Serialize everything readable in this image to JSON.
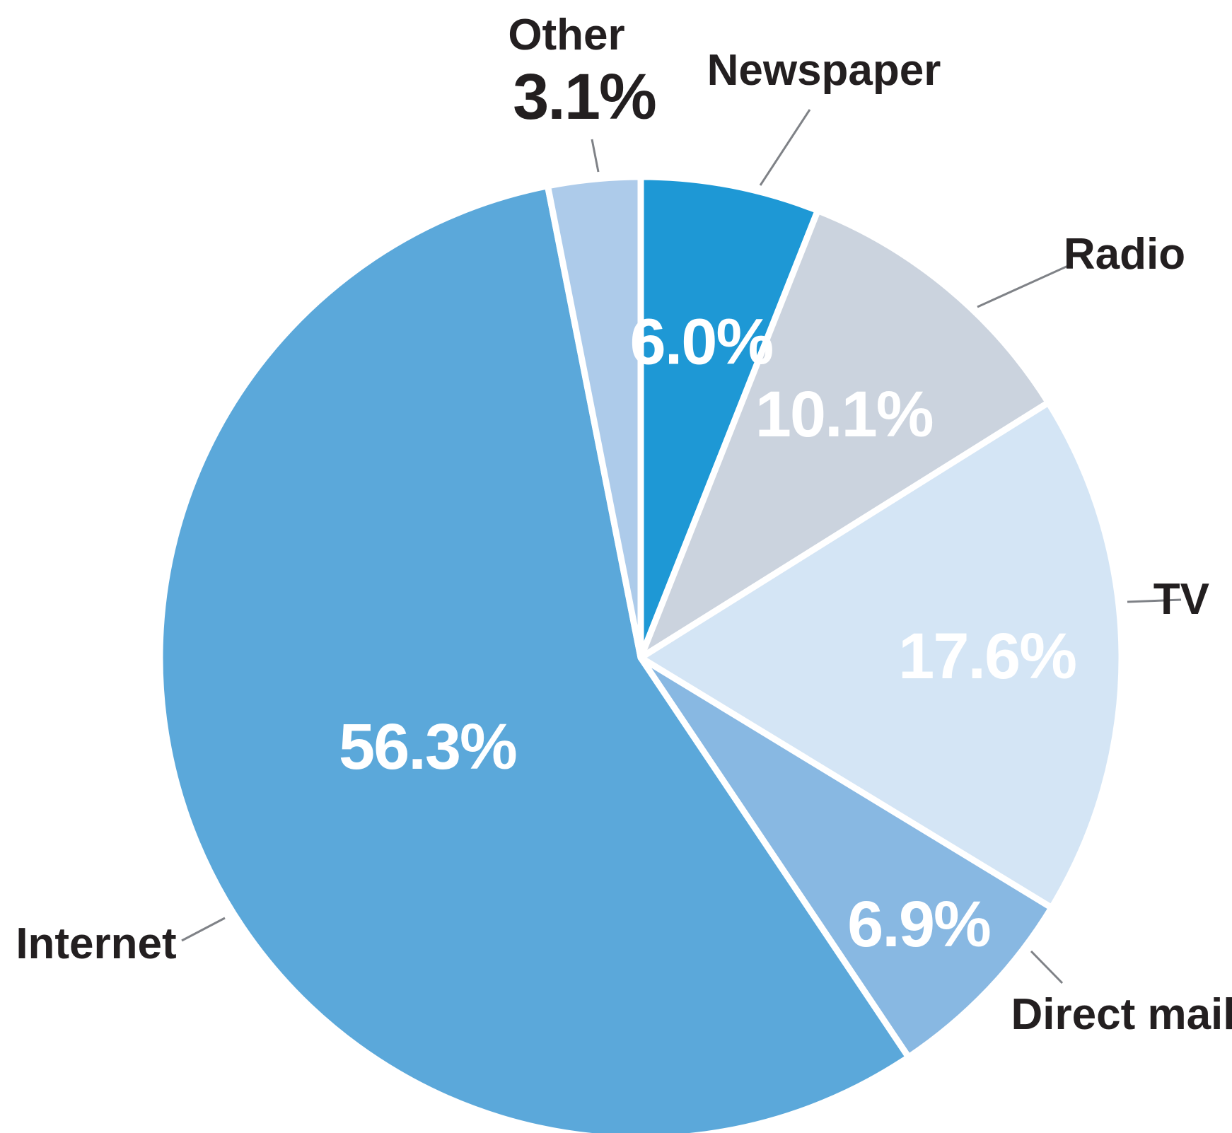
{
  "chart_data": {
    "type": "pie",
    "title": "",
    "start": "12 o'clock",
    "direction": "clockwise",
    "slices": [
      {
        "label": "Newspaper",
        "value": 6.0,
        "value_label": "6.0%",
        "color": "#1e98d5",
        "text_color": "#ffffff"
      },
      {
        "label": "Radio",
        "value": 10.1,
        "value_label": "10.1%",
        "color": "#cbd3de",
        "text_color": "#ffffff"
      },
      {
        "label": "TV",
        "value": 17.6,
        "value_label": "17.6%",
        "color": "#d4e5f5",
        "text_color": "#ffffff"
      },
      {
        "label": "Direct mail",
        "value": 6.9,
        "value_label": "6.9%",
        "color": "#88b8e2",
        "text_color": "#ffffff"
      },
      {
        "label": "Internet",
        "value": 56.3,
        "value_label": "56.3%",
        "color": "#5ba8da",
        "text_color": "#ffffff"
      },
      {
        "label": "Other",
        "value": 3.1,
        "value_label": "3.1%",
        "color": "#adcbea",
        "text_color": "#231f20"
      }
    ]
  }
}
